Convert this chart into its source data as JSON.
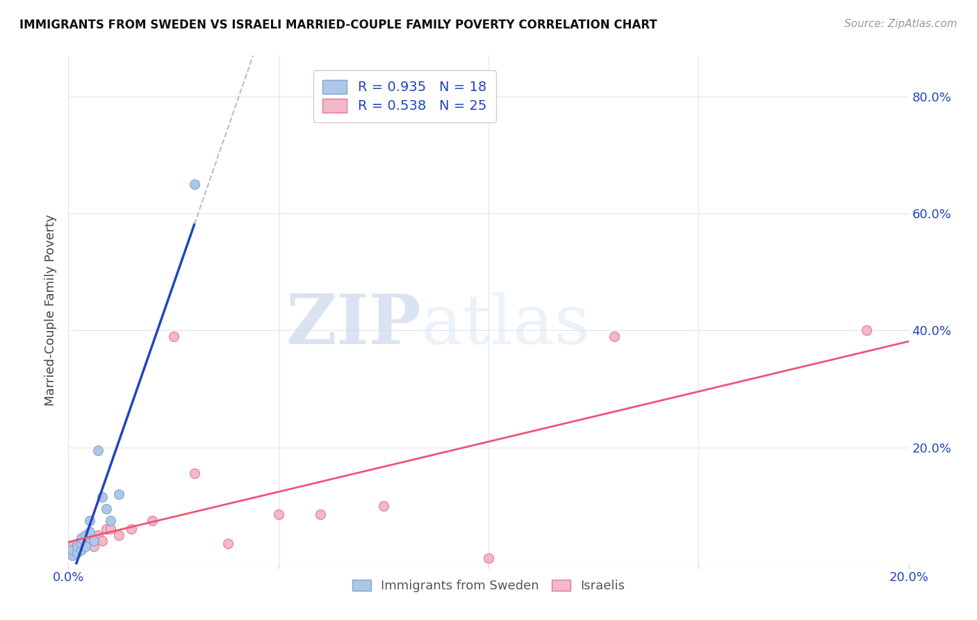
{
  "title": "IMMIGRANTS FROM SWEDEN VS ISRAELI MARRIED-COUPLE FAMILY POVERTY CORRELATION CHART",
  "source": "Source: ZipAtlas.com",
  "ylabel": "Married-Couple Family Poverty",
  "xlim": [
    0.0,
    0.2
  ],
  "ylim": [
    0.0,
    0.87
  ],
  "x_ticks": [
    0.0,
    0.05,
    0.1,
    0.15,
    0.2
  ],
  "x_tick_labels": [
    "0.0%",
    "",
    "",
    "",
    "20.0%"
  ],
  "y_ticks": [
    0.0,
    0.2,
    0.4,
    0.6,
    0.8
  ],
  "y_tick_labels_right": [
    "",
    "20.0%",
    "40.0%",
    "60.0%",
    "80.0%"
  ],
  "sweden_color": "#aec6e8",
  "sweden_edge_color": "#7aaad0",
  "israeli_color": "#f4b8c8",
  "israeli_edge_color": "#e07898",
  "sweden_line_color": "#2244bb",
  "israeli_line_color": "#ee5577",
  "trend_dash_color": "#bbbbcc",
  "R_sweden": 0.935,
  "N_sweden": 18,
  "R_israeli": 0.538,
  "N_israeli": 25,
  "sweden_x": [
    0.001,
    0.001,
    0.002,
    0.002,
    0.003,
    0.003,
    0.003,
    0.004,
    0.004,
    0.005,
    0.005,
    0.006,
    0.007,
    0.008,
    0.009,
    0.01,
    0.012,
    0.03
  ],
  "sweden_y": [
    0.015,
    0.025,
    0.02,
    0.03,
    0.025,
    0.035,
    0.045,
    0.03,
    0.05,
    0.055,
    0.075,
    0.04,
    0.195,
    0.115,
    0.095,
    0.075,
    0.12,
    0.65
  ],
  "israeli_x": [
    0.001,
    0.001,
    0.002,
    0.002,
    0.003,
    0.003,
    0.004,
    0.005,
    0.006,
    0.007,
    0.008,
    0.009,
    0.01,
    0.012,
    0.015,
    0.02,
    0.025,
    0.03,
    0.038,
    0.05,
    0.06,
    0.075,
    0.1,
    0.13,
    0.19
  ],
  "israeli_y": [
    0.02,
    0.03,
    0.025,
    0.035,
    0.03,
    0.04,
    0.035,
    0.045,
    0.03,
    0.05,
    0.04,
    0.06,
    0.06,
    0.05,
    0.06,
    0.075,
    0.39,
    0.155,
    0.035,
    0.085,
    0.085,
    0.1,
    0.01,
    0.39,
    0.4
  ],
  "watermark_zip": "ZIP",
  "watermark_atlas": "atlas",
  "background_color": "#ffffff",
  "grid_color": "#e0e4ee",
  "legend_text_color": "#2244bb",
  "tick_color": "#2244bb",
  "marker_size": 100,
  "title_fontsize": 12,
  "source_fontsize": 11,
  "legend_fontsize": 14,
  "axis_fontsize": 13
}
